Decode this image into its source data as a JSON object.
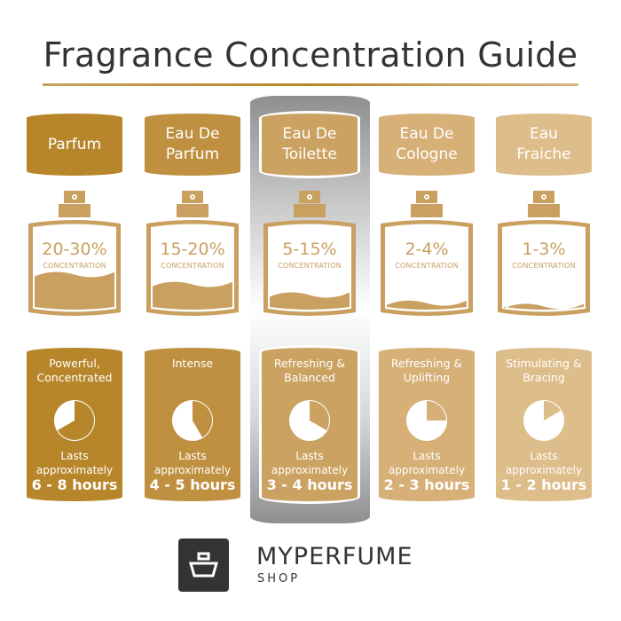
{
  "title": "Fragrance Concentration Guide",
  "concentration_label": "CONCENTRATION",
  "lasts_label": [
    "Lasts",
    "approximately"
  ],
  "highlighted_column": 2,
  "columns": [
    {
      "name_lines": [
        "Parfum"
      ],
      "percent": "20-30%",
      "fill_level": 0.45,
      "description": [
        "Powerful,",
        "Concentrated"
      ],
      "duration": "6 - 8 hours",
      "clock_hours": 8,
      "color": "#b8862a"
    },
    {
      "name_lines": [
        "Eau De",
        "Parfum"
      ],
      "percent": "15-20%",
      "fill_level": 0.33,
      "description": [
        "Intense"
      ],
      "duration": "4 - 5 hours",
      "clock_hours": 5,
      "color": "#bf9040"
    },
    {
      "name_lines": [
        "Eau De",
        "Toilette"
      ],
      "percent": "5-15%",
      "fill_level": 0.2,
      "description": [
        "Refreshing &",
        "Balanced"
      ],
      "duration": "3 - 4 hours",
      "clock_hours": 4,
      "color": "#cba262"
    },
    {
      "name_lines": [
        "Eau De",
        "Cologne"
      ],
      "percent": "2-4%",
      "fill_level": 0.1,
      "description": [
        "Refreshing &",
        "Uplifting"
      ],
      "duration": "2 - 3 hours",
      "clock_hours": 3,
      "color": "#d6b077"
    },
    {
      "name_lines": [
        "Eau",
        "Fraiche"
      ],
      "percent": "1-3%",
      "fill_level": 0.06,
      "description": [
        "Stimulating &",
        "Bracing"
      ],
      "duration": "1 - 2 hours",
      "clock_hours": 2,
      "color": "#ddbd8a"
    }
  ],
  "bottle_color": "#c9a060",
  "brand": {
    "name": "MYPERFUME",
    "sub": "SHOP",
    "logo_color": "#323335"
  }
}
